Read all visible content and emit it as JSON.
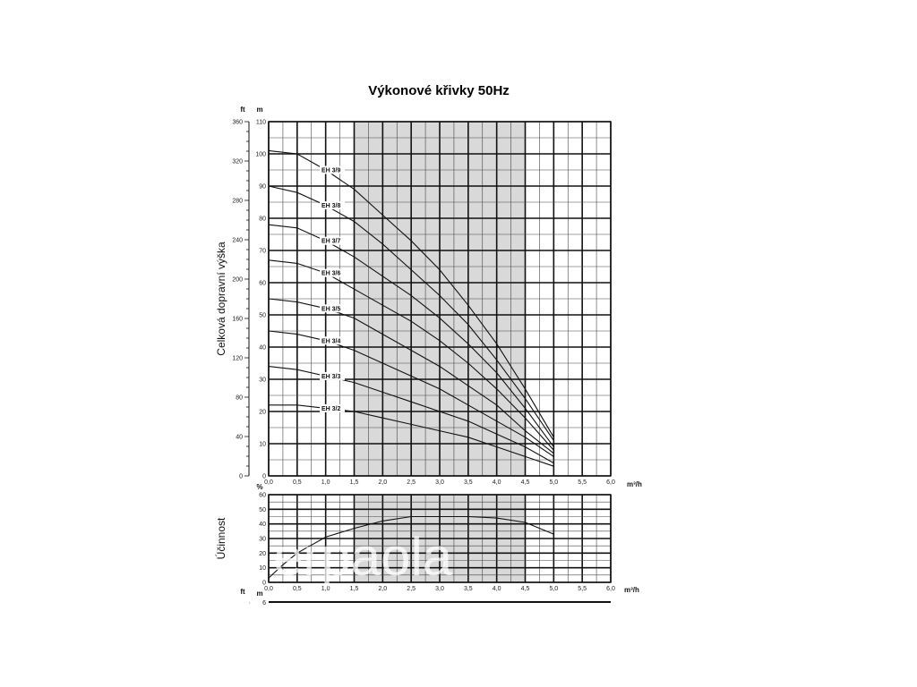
{
  "chart_data": [
    {
      "type": "line",
      "title": "Výkonové křivky 50Hz",
      "ylabel": "Celková dopravní výška",
      "y_unit": "m",
      "y2_unit": "ft",
      "x_unit": "m³/h",
      "xlim": [
        0,
        6
      ],
      "ylim": [
        0,
        110
      ],
      "y2lim": [
        0,
        360
      ],
      "x_ticks": [
        "0,0",
        "0,5",
        "1,0",
        "1,5",
        "2,0",
        "2,5",
        "3,0",
        "3,5",
        "4,0",
        "4,5",
        "5,0",
        "5,5",
        "6,0"
      ],
      "y_ticks": [
        "0",
        "10",
        "20",
        "30",
        "40",
        "50",
        "60",
        "70",
        "80",
        "90",
        "100",
        "110"
      ],
      "y2_ticks": [
        "0",
        "40",
        "80",
        "120",
        "160",
        "200",
        "240",
        "280",
        "320",
        "360"
      ],
      "shaded_range": [
        1.5,
        4.5
      ],
      "grid": true,
      "series": [
        {
          "name": "EH 3/9",
          "x": [
            0,
            0.5,
            1.0,
            1.5,
            2.0,
            2.5,
            3.0,
            3.5,
            4.0,
            4.5,
            5.0
          ],
          "y": [
            101,
            100,
            95,
            89,
            81,
            73,
            64,
            53,
            41,
            27,
            12
          ]
        },
        {
          "name": "EH 3/8",
          "x": [
            0,
            0.5,
            1.0,
            1.5,
            2.0,
            2.5,
            3.0,
            3.5,
            4.0,
            4.5,
            5.0
          ],
          "y": [
            90,
            88,
            84,
            79,
            72,
            64,
            56,
            47,
            36,
            24,
            11
          ]
        },
        {
          "name": "EH 3/7",
          "x": [
            0,
            0.5,
            1.0,
            1.5,
            2.0,
            2.5,
            3.0,
            3.5,
            4.0,
            4.5,
            5.0
          ],
          "y": [
            78,
            77,
            73,
            68,
            62,
            56,
            49,
            41,
            32,
            21,
            9
          ]
        },
        {
          "name": "EH 3/6",
          "x": [
            0,
            0.5,
            1.0,
            1.5,
            2.0,
            2.5,
            3.0,
            3.5,
            4.0,
            4.5,
            5.0
          ],
          "y": [
            67,
            66,
            63,
            58,
            53,
            48,
            42,
            35,
            27,
            18,
            8
          ]
        },
        {
          "name": "EH 3/5",
          "x": [
            0,
            0.5,
            1.0,
            1.5,
            2.0,
            2.5,
            3.0,
            3.5,
            4.0,
            4.5,
            5.0
          ],
          "y": [
            55,
            54,
            52,
            49,
            44,
            39,
            34,
            28,
            22,
            14,
            7
          ]
        },
        {
          "name": "EH 3/4",
          "x": [
            0,
            0.5,
            1.0,
            1.5,
            2.0,
            2.5,
            3.0,
            3.5,
            4.0,
            4.5,
            5.0
          ],
          "y": [
            45,
            44,
            42,
            39,
            35,
            31,
            27,
            22,
            17,
            12,
            6
          ]
        },
        {
          "name": "EH 3/3",
          "x": [
            0,
            0.5,
            1.0,
            1.5,
            2.0,
            2.5,
            3.0,
            3.5,
            4.0,
            4.5,
            5.0
          ],
          "y": [
            34,
            33,
            31,
            29,
            26,
            23,
            20,
            17,
            13,
            9,
            4
          ]
        },
        {
          "name": "EH 3/2",
          "x": [
            0,
            0.5,
            1.0,
            1.5,
            2.0,
            2.5,
            3.0,
            3.5,
            4.0,
            4.5,
            5.0
          ],
          "y": [
            22,
            22,
            21,
            20,
            18,
            16,
            14,
            12,
            9,
            6,
            3
          ]
        }
      ]
    },
    {
      "type": "line",
      "ylabel": "Účinnost",
      "y_unit": "%",
      "x_unit": "m³/h",
      "xlim": [
        0,
        6
      ],
      "ylim": [
        0,
        60
      ],
      "x_ticks": [
        "0,0",
        "0,5",
        "1,0",
        "1,5",
        "2,0",
        "2,5",
        "3,0",
        "3,5",
        "4,0",
        "4,5",
        "5,0",
        "5,5",
        "6,0"
      ],
      "y_ticks": [
        "0",
        "10",
        "20",
        "30",
        "40",
        "50",
        "60"
      ],
      "shaded_range": [
        1.5,
        4.5
      ],
      "grid": true,
      "series": [
        {
          "x": [
            0,
            0.25,
            0.5,
            1.0,
            1.5,
            2.0,
            2.5,
            3.0,
            3.5,
            4.0,
            4.5,
            5.0
          ],
          "y": [
            3,
            12,
            20,
            31,
            37,
            42,
            45,
            45,
            45,
            44,
            41,
            33
          ]
        }
      ]
    },
    {
      "type": "line",
      "y_unit": "m",
      "y2_unit": "ft",
      "x_unit": "m³/h",
      "y_ticks": [
        "6"
      ],
      "y2_ticks": [
        ""
      ]
    }
  ],
  "watermark": "erpaola",
  "colors": {
    "line": "#111111",
    "grid_major": "#111111",
    "grid_minor": "#444444",
    "shade": "#d9d9d9"
  }
}
